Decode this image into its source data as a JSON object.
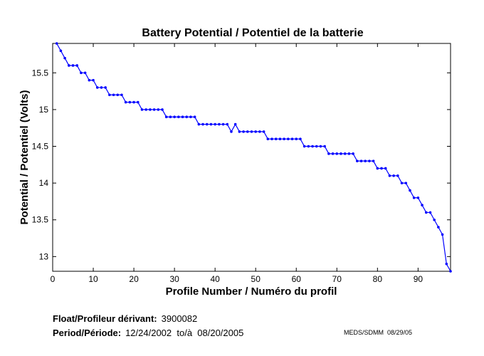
{
  "chart_data": {
    "type": "line",
    "title": "Battery Potential / Potentiel de la batterie",
    "xlabel": "Profile Number / Numéro du profil",
    "ylabel": "Potential / Potentiel (Volts)",
    "xlim": [
      0,
      98
    ],
    "ylim": [
      12.8,
      15.9
    ],
    "xticks": [
      "0",
      "10",
      "20",
      "30",
      "40",
      "50",
      "60",
      "70",
      "80",
      "90"
    ],
    "yticks": [
      "13",
      "13.5",
      "14",
      "14.5",
      "15",
      "15.5"
    ],
    "xtick_values": [
      0,
      10,
      20,
      30,
      40,
      50,
      60,
      70,
      80,
      90
    ],
    "ytick_values": [
      13,
      13.5,
      14,
      14.5,
      15,
      15.5
    ],
    "grid": false,
    "markers": true,
    "series_color": "#0000ff",
    "x": [
      1,
      2,
      3,
      4,
      5,
      6,
      7,
      8,
      9,
      10,
      11,
      12,
      13,
      14,
      15,
      16,
      17,
      18,
      19,
      20,
      21,
      22,
      23,
      24,
      25,
      26,
      27,
      28,
      29,
      30,
      31,
      32,
      33,
      34,
      35,
      36,
      37,
      38,
      39,
      40,
      41,
      42,
      43,
      44,
      45,
      46,
      47,
      48,
      49,
      50,
      51,
      52,
      53,
      54,
      55,
      56,
      57,
      58,
      59,
      60,
      61,
      62,
      63,
      64,
      65,
      66,
      67,
      68,
      69,
      70,
      71,
      72,
      73,
      74,
      75,
      76,
      77,
      78,
      79,
      80,
      81,
      82,
      83,
      84,
      85,
      86,
      87,
      88,
      89,
      90,
      91,
      92,
      93,
      94,
      95,
      96,
      97,
      98
    ],
    "y": [
      15.9,
      15.8,
      15.7,
      15.6,
      15.6,
      15.6,
      15.5,
      15.5,
      15.4,
      15.4,
      15.3,
      15.3,
      15.3,
      15.2,
      15.2,
      15.2,
      15.2,
      15.1,
      15.1,
      15.1,
      15.1,
      15.0,
      15.0,
      15.0,
      15.0,
      15.0,
      15.0,
      14.9,
      14.9,
      14.9,
      14.9,
      14.9,
      14.9,
      14.9,
      14.9,
      14.8,
      14.8,
      14.8,
      14.8,
      14.8,
      14.8,
      14.8,
      14.8,
      14.7,
      14.8,
      14.7,
      14.7,
      14.7,
      14.7,
      14.7,
      14.7,
      14.7,
      14.6,
      14.6,
      14.6,
      14.6,
      14.6,
      14.6,
      14.6,
      14.6,
      14.6,
      14.5,
      14.5,
      14.5,
      14.5,
      14.5,
      14.5,
      14.4,
      14.4,
      14.4,
      14.4,
      14.4,
      14.4,
      14.4,
      14.3,
      14.3,
      14.3,
      14.3,
      14.3,
      14.2,
      14.2,
      14.2,
      14.1,
      14.1,
      14.1,
      14.0,
      14.0,
      13.9,
      13.8,
      13.8,
      13.7,
      13.6,
      13.6,
      13.5,
      13.4,
      13.3,
      12.9,
      12.8
    ]
  },
  "footer": {
    "float_label": "Float/Profileur dérivant:",
    "float_value": "3900082",
    "period_label": "Period/Période:",
    "period_value": "12/24/2002  to/à  08/20/2005",
    "credit": "MEDS/SDMM  08/29/05"
  }
}
